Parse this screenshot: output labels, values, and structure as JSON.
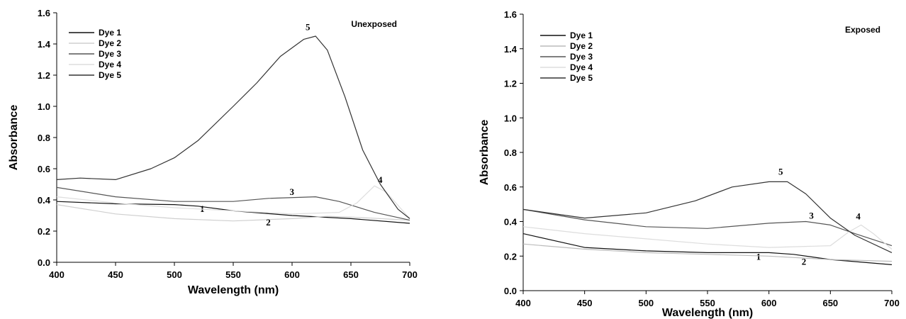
{
  "chart_data": [
    {
      "type": "line",
      "annotation": "Unexposed",
      "xlabel": "Wavelength (nm)",
      "ylabel": "Absorbance",
      "xlim": [
        400,
        700
      ],
      "ylim": [
        0.0,
        1.6
      ],
      "x_ticks": [
        "400",
        "450",
        "500",
        "550",
        "600",
        "650",
        "700"
      ],
      "y_ticks": [
        "0.0",
        "0.2",
        "0.4",
        "0.6",
        "0.8",
        "1.0",
        "1.2",
        "1.4",
        "1.6"
      ],
      "grid": false,
      "legend_position": "top-left",
      "series": [
        {
          "name": "Dye 1",
          "label": "1",
          "color": "#111111",
          "x": [
            400,
            450,
            500,
            520,
            550,
            600,
            650,
            700
          ],
          "y": [
            0.39,
            0.375,
            0.37,
            0.36,
            0.33,
            0.3,
            0.28,
            0.25
          ]
        },
        {
          "name": "Dye 2",
          "label": "2",
          "color": "#cfcfcf",
          "x": [
            400,
            450,
            500,
            550,
            600,
            630,
            650,
            700
          ],
          "y": [
            0.37,
            0.31,
            0.28,
            0.265,
            0.28,
            0.295,
            0.29,
            0.27
          ]
        },
        {
          "name": "Dye 3",
          "label": "3",
          "color": "#555555",
          "x": [
            400,
            450,
            500,
            550,
            580,
            620,
            640,
            670,
            700
          ],
          "y": [
            0.48,
            0.42,
            0.39,
            0.39,
            0.41,
            0.42,
            0.39,
            0.32,
            0.27
          ]
        },
        {
          "name": "Dye 4",
          "label": "4",
          "color": "#dddddd",
          "x": [
            400,
            450,
            500,
            550,
            600,
            640,
            655,
            670,
            680,
            700
          ],
          "y": [
            0.42,
            0.38,
            0.35,
            0.33,
            0.31,
            0.32,
            0.38,
            0.49,
            0.45,
            0.28
          ]
        },
        {
          "name": "Dye 5",
          "label": "5",
          "color": "#333333",
          "x": [
            400,
            420,
            450,
            480,
            500,
            520,
            550,
            570,
            590,
            610,
            620,
            630,
            645,
            660,
            675,
            690,
            700
          ],
          "y": [
            0.53,
            0.54,
            0.53,
            0.6,
            0.67,
            0.78,
            1.0,
            1.15,
            1.32,
            1.43,
            1.45,
            1.36,
            1.06,
            0.72,
            0.5,
            0.34,
            0.28
          ]
        }
      ]
    },
    {
      "type": "line",
      "annotation": "Exposed",
      "xlabel": "Wavelength (nm)",
      "ylabel": "Absorbance",
      "xlim": [
        400,
        700
      ],
      "ylim": [
        0.0,
        1.6
      ],
      "x_ticks": [
        "400",
        "450",
        "500",
        "550",
        "600",
        "650",
        "700"
      ],
      "y_ticks": [
        "0.0",
        "0.2",
        "0.4",
        "0.6",
        "0.8",
        "1.0",
        "1.2",
        "1.4",
        "1.6"
      ],
      "grid": false,
      "legend_position": "top-left",
      "series": [
        {
          "name": "Dye 1",
          "label": "1",
          "color": "#111111",
          "x": [
            400,
            450,
            500,
            550,
            600,
            620,
            650,
            700
          ],
          "y": [
            0.33,
            0.25,
            0.23,
            0.22,
            0.22,
            0.21,
            0.18,
            0.15
          ]
        },
        {
          "name": "Dye 2",
          "label": "2",
          "color": "#bbbbbb",
          "x": [
            400,
            450,
            500,
            550,
            600,
            650,
            700
          ],
          "y": [
            0.27,
            0.24,
            0.22,
            0.21,
            0.2,
            0.18,
            0.17
          ]
        },
        {
          "name": "Dye 3",
          "label": "3",
          "color": "#555555",
          "x": [
            400,
            450,
            500,
            550,
            600,
            630,
            650,
            670,
            700
          ],
          "y": [
            0.47,
            0.41,
            0.37,
            0.36,
            0.39,
            0.4,
            0.38,
            0.33,
            0.26
          ]
        },
        {
          "name": "Dye 4",
          "label": "4",
          "color": "#dddddd",
          "x": [
            400,
            450,
            500,
            550,
            600,
            650,
            665,
            675,
            685,
            700
          ],
          "y": [
            0.37,
            0.33,
            0.3,
            0.27,
            0.25,
            0.26,
            0.34,
            0.38,
            0.33,
            0.24
          ]
        },
        {
          "name": "Dye 5",
          "label": "5",
          "color": "#333333",
          "x": [
            400,
            450,
            500,
            540,
            570,
            600,
            615,
            630,
            650,
            670,
            700
          ],
          "y": [
            0.47,
            0.42,
            0.45,
            0.52,
            0.6,
            0.63,
            0.63,
            0.56,
            0.42,
            0.32,
            0.22
          ]
        }
      ]
    }
  ]
}
